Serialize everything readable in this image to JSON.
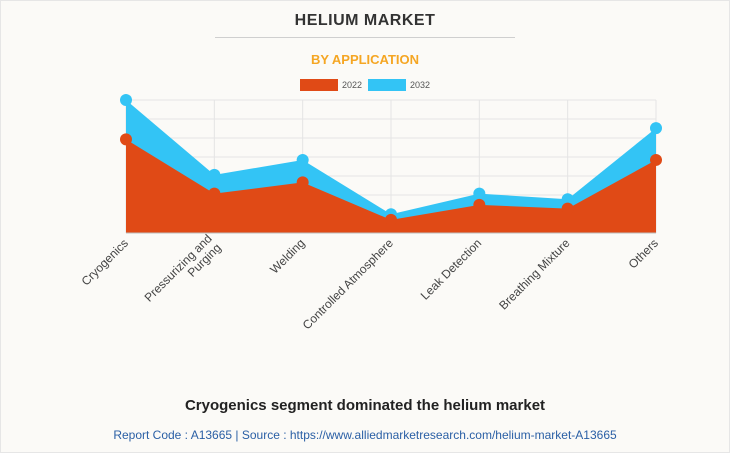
{
  "chart_data": {
    "type": "area",
    "title": "HELIUM MARKET",
    "subtitle": "BY APPLICATION",
    "categories": [
      "Cryogenics",
      "Pressurizing and Purging",
      "Welding",
      "Controlled Atmosphere",
      "Leak Detection",
      "Breathing Mixture",
      "Others"
    ],
    "category_lines": [
      [
        "Cryogenics"
      ],
      [
        "Pressurizing and",
        "Purging"
      ],
      [
        "Welding"
      ],
      [
        "Controlled Atmosphere"
      ],
      [
        "Leak Detection"
      ],
      [
        "Breathing Mixture"
      ],
      [
        "Others"
      ]
    ],
    "series": [
      {
        "name": "2022",
        "color": "#e04a16",
        "values": [
          5.0,
          2.1,
          2.7,
          0.7,
          1.5,
          1.3,
          3.9
        ]
      },
      {
        "name": "2032",
        "color": "#33c4f5",
        "values": [
          7.1,
          3.1,
          3.9,
          1.0,
          2.1,
          1.8,
          5.6
        ]
      }
    ],
    "ylim": [
      0,
      7.1
    ],
    "grid": true,
    "legend_position": "top-center",
    "xlabel": "",
    "ylabel": ""
  },
  "caption": "Cryogenics segment dominated the helium market",
  "footer": "Report Code : A13665  |  Source : https://www.alliedmarketresearch.com/helium-market-A13665"
}
